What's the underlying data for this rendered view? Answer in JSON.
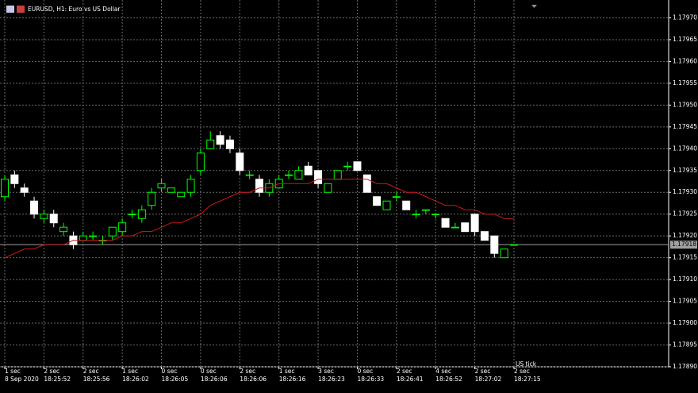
{
  "chart_data": {
    "type": "candlestick",
    "title": "EURUSD, H1:  Euro vs US Dollar",
    "categories": [
      "8 Sep 2020",
      null,
      null,
      null,
      "18:25:52",
      null,
      null,
      null,
      "18:25:56",
      null,
      null,
      null,
      "18:26:02",
      null,
      null,
      null,
      "18:26:05",
      null,
      null,
      null,
      "18:26:06",
      null,
      null,
      null,
      "18:26:06",
      null,
      null,
      null,
      "18:26:16",
      null,
      null,
      null,
      "18:26:23",
      null,
      null,
      null,
      "18:26:33",
      null,
      null,
      null,
      "18:26:41",
      null,
      null,
      null,
      "18:26:52",
      null,
      null,
      null,
      "18:27:02",
      null,
      null,
      null,
      "18:27:15"
    ],
    "durations": [
      "1 sec",
      null,
      null,
      null,
      "2 sec",
      null,
      null,
      null,
      "2 sec",
      null,
      null,
      null,
      "1 sec",
      null,
      null,
      null,
      "0 sec",
      null,
      null,
      null,
      "0 sec",
      null,
      null,
      null,
      "2 sec",
      null,
      null,
      null,
      "1 sec",
      null,
      null,
      null,
      "3 sec",
      null,
      null,
      null,
      "0 sec",
      null,
      null,
      null,
      "2 sec",
      null,
      null,
      null,
      "4 sec",
      null,
      null,
      null,
      "2 sec",
      null,
      null,
      null,
      "2 sec"
    ],
    "open": [
      1.17929,
      1.17934,
      1.17931,
      1.17928,
      1.17924,
      1.17925,
      1.17921,
      1.1792,
      1.17919,
      1.1792,
      1.17919,
      1.1792,
      1.17921,
      1.17925,
      1.17924,
      1.17927,
      1.17931,
      1.1793,
      1.17929,
      1.1793,
      1.17935,
      1.1794,
      1.17943,
      1.17942,
      1.17939,
      1.17934,
      1.17933,
      1.1793,
      1.17931,
      1.17934,
      1.17933,
      1.17936,
      1.17935,
      1.1793,
      1.17933,
      1.17936,
      1.17937,
      1.17934,
      1.17929,
      1.17926,
      1.17929,
      1.17928,
      1.17925,
      1.17926,
      1.17925,
      1.17924,
      1.17922,
      1.17923,
      1.17925,
      1.17921,
      1.1792,
      1.17915,
      1.17918
    ],
    "high": [
      1.17934,
      1.17935,
      1.17932,
      1.17929,
      1.17926,
      1.17926,
      1.17923,
      1.17921,
      1.17921,
      1.17921,
      1.1792,
      1.17922,
      1.17924,
      1.17926,
      1.17927,
      1.17931,
      1.17933,
      1.17931,
      1.1793,
      1.17934,
      1.1794,
      1.17944,
      1.17944,
      1.17943,
      1.1794,
      1.17935,
      1.17934,
      1.17933,
      1.17934,
      1.17935,
      1.17936,
      1.17937,
      1.17935,
      1.17932,
      1.17935,
      1.17937,
      1.17937,
      1.17934,
      1.17929,
      1.17928,
      1.1793,
      1.17928,
      1.17926,
      1.17926,
      1.17925,
      1.17924,
      1.17923,
      1.17923,
      1.17925,
      1.17921,
      1.1792,
      1.17917,
      1.17918
    ],
    "low": [
      1.17928,
      1.17931,
      1.17929,
      1.17924,
      1.17923,
      1.17922,
      1.1792,
      1.17917,
      1.17919,
      1.17919,
      1.17918,
      1.17919,
      1.1792,
      1.17924,
      1.17923,
      1.17926,
      1.1793,
      1.1793,
      1.17929,
      1.17929,
      1.17934,
      1.1794,
      1.1794,
      1.17939,
      1.17934,
      1.17933,
      1.17929,
      1.17929,
      1.17931,
      1.17933,
      1.17933,
      1.17934,
      1.17931,
      1.1793,
      1.17933,
      1.17935,
      1.17935,
      1.1793,
      1.17927,
      1.17926,
      1.17928,
      1.17926,
      1.17924,
      1.17925,
      1.17924,
      1.17922,
      1.17922,
      1.17921,
      1.1792,
      1.17919,
      1.17915,
      1.17915,
      1.17918
    ],
    "close": [
      1.17933,
      1.17932,
      1.1793,
      1.17925,
      1.17925,
      1.17923,
      1.17922,
      1.17918,
      1.1792,
      1.1792,
      1.17919,
      1.17922,
      1.17923,
      1.17925,
      1.17926,
      1.1793,
      1.17932,
      1.17931,
      1.1793,
      1.17933,
      1.17939,
      1.17942,
      1.17941,
      1.1794,
      1.17935,
      1.17934,
      1.1793,
      1.17932,
      1.17933,
      1.17934,
      1.17935,
      1.17934,
      1.17932,
      1.17932,
      1.17935,
      1.17936,
      1.17935,
      1.1793,
      1.17927,
      1.17928,
      1.17929,
      1.17926,
      1.17925,
      1.17926,
      1.17925,
      1.17922,
      1.17922,
      1.17921,
      1.17921,
      1.17919,
      1.17916,
      1.17917,
      1.17918
    ],
    "ma": {
      "color": "#d01818",
      "values": [
        1.17915,
        1.17916,
        1.17917,
        1.17917,
        1.17918,
        1.17918,
        1.17918,
        1.17919,
        1.17919,
        1.17919,
        1.17919,
        1.17919,
        1.1792,
        1.1792,
        1.17921,
        1.17921,
        1.17922,
        1.17923,
        1.17923,
        1.17924,
        1.17925,
        1.17927,
        1.17928,
        1.17929,
        1.1793,
        1.1793,
        1.17931,
        1.17931,
        1.17932,
        1.17932,
        1.17932,
        1.17932,
        1.17933,
        1.17933,
        1.17933,
        1.17933,
        1.17933,
        1.17933,
        1.17932,
        1.17932,
        1.17931,
        1.1793,
        1.1793,
        1.17929,
        1.17928,
        1.17927,
        1.17927,
        1.17926,
        1.17926,
        1.17925,
        1.17925,
        1.17924,
        1.17924
      ]
    },
    "up_color": "#00ff00",
    "down_color": "#ffffff",
    "ylim": [
      1.1789,
      1.17973
    ],
    "yticks": [
      {
        "value": 1.1789,
        "label": "1.17890"
      },
      1.17895,
      {
        "value": 1.179,
        "label": "1.17900"
      },
      1.17905,
      {
        "value": 1.1791,
        "label": "1.17910"
      },
      1.17915,
      {
        "value": 1.1792,
        "label": "1.17920"
      },
      1.17925,
      {
        "value": 1.1793,
        "label": "1.17930"
      },
      1.17935,
      {
        "value": 1.1794,
        "label": "1.17940"
      },
      1.17945,
      {
        "value": 1.1795,
        "label": "1.17950"
      },
      1.17955,
      {
        "value": 1.1796,
        "label": "1.17960"
      },
      1.17965,
      {
        "value": 1.1797,
        "label": "1.17970"
      }
    ],
    "grid": true,
    "last_price": 1.17918,
    "scale_label": "US tick"
  }
}
